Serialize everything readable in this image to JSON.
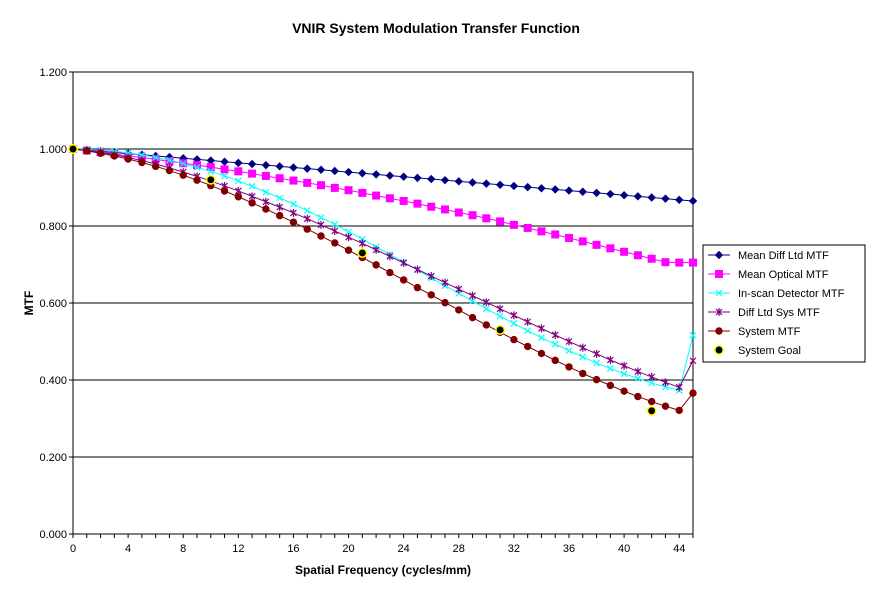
{
  "chart_data": {
    "type": "line",
    "title": "VNIR System Modulation Transfer Function",
    "xlabel": "Spatial Frequency (cycles/mm)",
    "ylabel": "MTF",
    "xlim": [
      0,
      45
    ],
    "ylim": [
      0,
      1.2
    ],
    "x_ticks": [
      0,
      4,
      8,
      12,
      16,
      20,
      24,
      28,
      32,
      36,
      40,
      44
    ],
    "x_tick_labels": [
      "0",
      "4",
      "8",
      "12",
      "16",
      "20",
      "24",
      "28",
      "32",
      "36",
      "40",
      "44"
    ],
    "y_ticks": [
      0,
      0.2,
      0.4,
      0.6,
      0.8,
      1.0,
      1.2
    ],
    "y_tick_labels": [
      "0.000",
      "0.200",
      "0.400",
      "0.600",
      "0.800",
      "1.000",
      "1.200"
    ],
    "grid": "horizontal",
    "legend_position": "right",
    "series": [
      {
        "name": "Mean Diff Ltd MTF",
        "color": "#000080",
        "marker": "diamond",
        "x": [
          0,
          1,
          2,
          3,
          4,
          5,
          6,
          7,
          8,
          9,
          10,
          11,
          12,
          13,
          14,
          15,
          16,
          17,
          18,
          19,
          20,
          21,
          22,
          23,
          24,
          25,
          26,
          27,
          28,
          29,
          30,
          31,
          32,
          33,
          34,
          35,
          36,
          37,
          38,
          39,
          40,
          41,
          42,
          43,
          44,
          45
        ],
        "y": [
          1.0,
          0.997,
          0.994,
          0.991,
          0.988,
          0.985,
          0.982,
          0.979,
          0.976,
          0.973,
          0.97,
          0.967,
          0.964,
          0.961,
          0.958,
          0.955,
          0.952,
          0.949,
          0.946,
          0.943,
          0.94,
          0.937,
          0.934,
          0.931,
          0.928,
          0.925,
          0.922,
          0.919,
          0.916,
          0.913,
          0.91,
          0.907,
          0.904,
          0.901,
          0.898,
          0.895,
          0.892,
          0.889,
          0.886,
          0.883,
          0.88,
          0.877,
          0.874,
          0.871,
          0.868,
          0.865
        ]
      },
      {
        "name": "Mean Optical MTF",
        "color": "#ff00ff",
        "marker": "square",
        "x": [
          0,
          1,
          2,
          3,
          4,
          5,
          6,
          7,
          8,
          9,
          10,
          11,
          12,
          13,
          14,
          15,
          16,
          17,
          18,
          19,
          20,
          21,
          22,
          23,
          24,
          25,
          26,
          27,
          28,
          29,
          30,
          31,
          32,
          33,
          34,
          35,
          36,
          37,
          38,
          39,
          40,
          41,
          42,
          43,
          44,
          45
        ],
        "y": [
          1.0,
          0.996,
          0.992,
          0.987,
          0.982,
          0.978,
          0.973,
          0.968,
          0.963,
          0.958,
          0.953,
          0.947,
          0.942,
          0.936,
          0.93,
          0.924,
          0.918,
          0.912,
          0.906,
          0.899,
          0.893,
          0.886,
          0.879,
          0.872,
          0.865,
          0.858,
          0.85,
          0.843,
          0.835,
          0.828,
          0.82,
          0.812,
          0.803,
          0.795,
          0.786,
          0.778,
          0.769,
          0.76,
          0.751,
          0.742,
          0.733,
          0.724,
          0.715,
          0.706,
          0.705,
          0.705
        ]
      },
      {
        "name": "In-scan Detector MTF",
        "color": "#00ffff",
        "marker": "x",
        "x": [
          0,
          1,
          2,
          3,
          4,
          5,
          6,
          7,
          8,
          9,
          10,
          11,
          12,
          13,
          14,
          15,
          16,
          17,
          18,
          19,
          20,
          21,
          22,
          23,
          24,
          25,
          26,
          27,
          28,
          29,
          30,
          31,
          32,
          33,
          34,
          35,
          36,
          37,
          38,
          39,
          40,
          41,
          42,
          43,
          44,
          45
        ],
        "y": [
          1.0,
          0.999,
          0.997,
          0.994,
          0.99,
          0.985,
          0.978,
          0.971,
          0.962,
          0.952,
          0.942,
          0.93,
          0.917,
          0.903,
          0.888,
          0.873,
          0.857,
          0.84,
          0.822,
          0.804,
          0.785,
          0.766,
          0.746,
          0.726,
          0.706,
          0.686,
          0.665,
          0.645,
          0.625,
          0.605,
          0.585,
          0.566,
          0.547,
          0.528,
          0.51,
          0.493,
          0.476,
          0.46,
          0.444,
          0.43,
          0.416,
          0.404,
          0.392,
          0.382,
          0.373,
          0.516
        ]
      },
      {
        "name": "Diff Ltd Sys MTF",
        "color": "#800080",
        "marker": "star",
        "x": [
          0,
          1,
          2,
          3,
          4,
          5,
          6,
          7,
          8,
          9,
          10,
          11,
          12,
          13,
          14,
          15,
          16,
          17,
          18,
          19,
          20,
          21,
          22,
          23,
          24,
          25,
          26,
          27,
          28,
          29,
          30,
          31,
          32,
          33,
          34,
          35,
          36,
          37,
          38,
          39,
          40,
          41,
          42,
          43,
          44,
          45
        ],
        "y": [
          1.0,
          0.996,
          0.991,
          0.985,
          0.978,
          0.97,
          0.961,
          0.951,
          0.94,
          0.929,
          0.917,
          0.904,
          0.891,
          0.877,
          0.863,
          0.849,
          0.834,
          0.819,
          0.803,
          0.787,
          0.771,
          0.755,
          0.738,
          0.721,
          0.704,
          0.687,
          0.67,
          0.653,
          0.636,
          0.619,
          0.602,
          0.585,
          0.568,
          0.551,
          0.534,
          0.517,
          0.5,
          0.484,
          0.468,
          0.452,
          0.437,
          0.422,
          0.408,
          0.394,
          0.381,
          0.45
        ]
      },
      {
        "name": "System MTF",
        "color": "#800000",
        "marker": "circle",
        "x": [
          0,
          1,
          2,
          3,
          4,
          5,
          6,
          7,
          8,
          9,
          10,
          11,
          12,
          13,
          14,
          15,
          16,
          17,
          18,
          19,
          20,
          21,
          22,
          23,
          24,
          25,
          26,
          27,
          28,
          29,
          30,
          31,
          32,
          33,
          34,
          35,
          36,
          37,
          38,
          39,
          40,
          41,
          42,
          43,
          44,
          45
        ],
        "y": [
          1.0,
          0.995,
          0.989,
          0.982,
          0.974,
          0.965,
          0.955,
          0.944,
          0.932,
          0.919,
          0.905,
          0.891,
          0.876,
          0.86,
          0.844,
          0.827,
          0.81,
          0.792,
          0.774,
          0.756,
          0.737,
          0.718,
          0.699,
          0.679,
          0.66,
          0.64,
          0.621,
          0.601,
          0.582,
          0.562,
          0.543,
          0.524,
          0.505,
          0.487,
          0.469,
          0.451,
          0.434,
          0.417,
          0.401,
          0.386,
          0.371,
          0.357,
          0.344,
          0.332,
          0.321,
          0.366
        ]
      },
      {
        "name": "System Goal",
        "color": "#ffff00",
        "marker": "circle-black",
        "x": [
          0,
          10,
          21,
          31,
          42
        ],
        "y": [
          1.0,
          0.92,
          0.73,
          0.53,
          0.32
        ]
      }
    ]
  }
}
